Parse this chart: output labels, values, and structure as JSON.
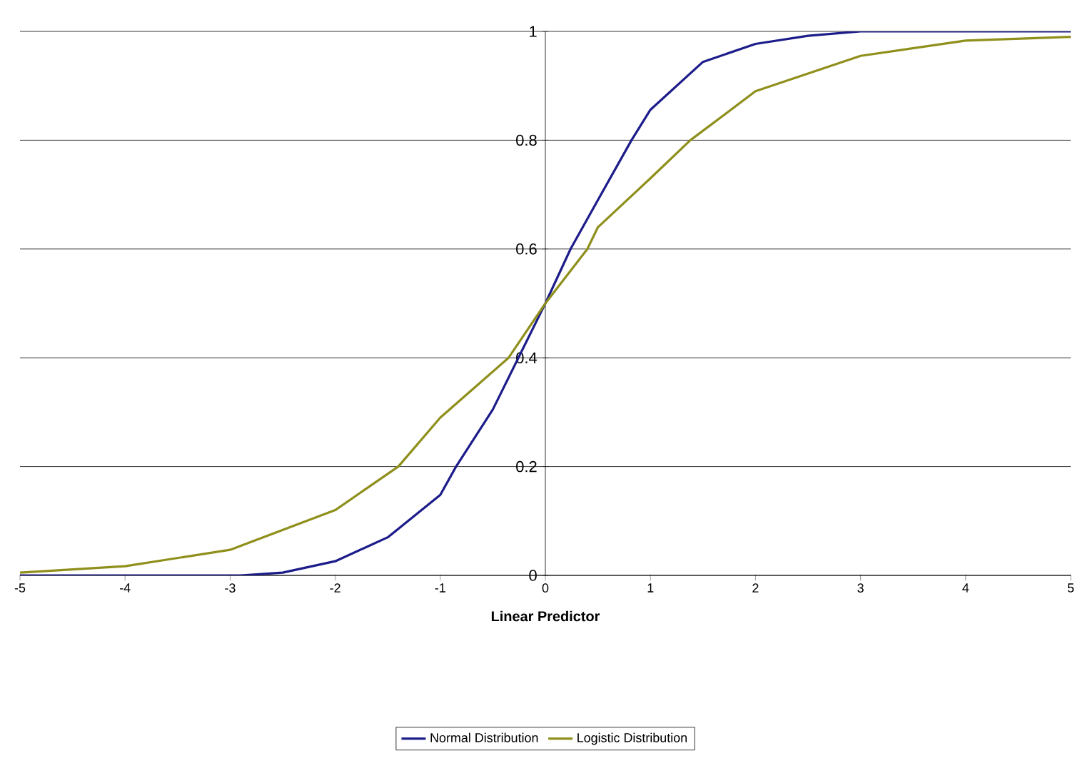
{
  "chart_data": {
    "type": "line",
    "xlabel": "Linear Predictor",
    "xlim": [
      -5,
      5
    ],
    "xticks": [
      -5,
      -4,
      -3,
      -2,
      -1,
      0,
      1,
      2,
      3,
      4,
      5
    ],
    "ylim": [
      0,
      1
    ],
    "yticks": [
      0,
      0.2,
      0.4,
      0.6,
      0.8,
      1
    ],
    "grid": "y",
    "legend": "bottom",
    "marker": "none",
    "line_style": "solid",
    "series": [
      {
        "name": "Normal Distribution",
        "color": "#1c1c8a",
        "x": [
          -5,
          -3,
          -2.9,
          -2.5,
          -2,
          -1.5,
          -1,
          -0.85,
          -0.5,
          0,
          0.24,
          0.5,
          0.82,
          1,
          1.5,
          2,
          2.5,
          3,
          4,
          5
        ],
        "values": [
          0,
          0,
          0,
          0.005,
          0.026,
          0.07,
          0.148,
          0.2,
          0.305,
          0.5,
          0.6,
          0.69,
          0.8,
          0.856,
          0.944,
          0.977,
          0.992,
          1,
          1,
          1
        ]
      },
      {
        "name": "Logistic Distribution",
        "color": "#8f8f1c",
        "x": [
          -5,
          -4,
          -3,
          -2,
          -1.4,
          -1,
          -0.35,
          0,
          0.4,
          0.5,
          1,
          1.38,
          2,
          3,
          4,
          5
        ],
        "values": [
          0.005,
          0.017,
          0.047,
          0.12,
          0.2,
          0.29,
          0.4,
          0.5,
          0.6,
          0.64,
          0.73,
          0.8,
          0.89,
          0.955,
          0.983,
          0.99
        ]
      }
    ]
  }
}
